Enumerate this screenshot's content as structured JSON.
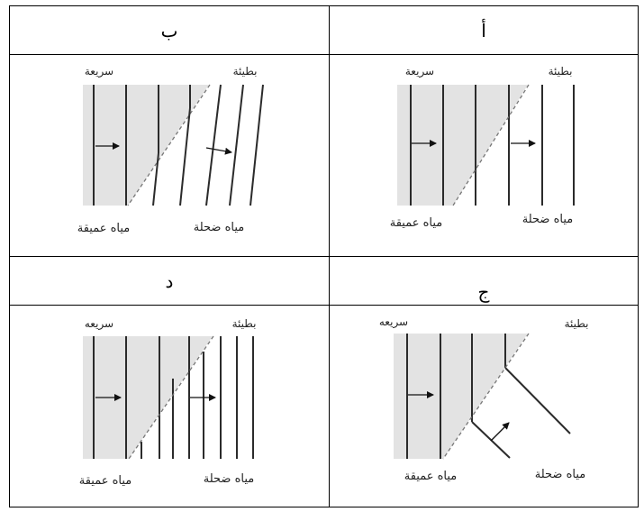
{
  "table": {
    "headers": {
      "a": "أ",
      "b": "ب",
      "c": "ج",
      "d": "د"
    }
  },
  "labels": {
    "fast": "سريعة",
    "fast_alt": "سريعه",
    "slow": "بطيئة",
    "deep_water": "مياه عميقة",
    "shallow_water": "مياه ضحلة"
  }
}
